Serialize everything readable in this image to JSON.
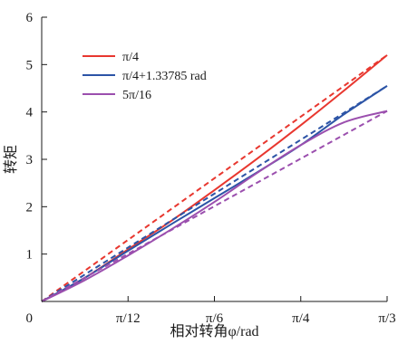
{
  "chart_data": {
    "type": "line",
    "title": "",
    "xlabel": "相对转角φ/rad",
    "ylabel": "转矩",
    "xlim": [
      0,
      1.0472
    ],
    "ylim": [
      0,
      6
    ],
    "grid": false,
    "legend_position": "top-left",
    "x_ticks": [
      {
        "value": 0,
        "label": "0"
      },
      {
        "value": 0.2618,
        "label": "π/12"
      },
      {
        "value": 0.5236,
        "label": "π/6"
      },
      {
        "value": 0.7854,
        "label": "π/4"
      },
      {
        "value": 1.0472,
        "label": "π/3"
      }
    ],
    "y_ticks": [
      {
        "value": 0,
        "label": ""
      },
      {
        "value": 1,
        "label": "1"
      },
      {
        "value": 2,
        "label": "2"
      },
      {
        "value": 3,
        "label": "3"
      },
      {
        "value": 4,
        "label": "4"
      },
      {
        "value": 5,
        "label": "5"
      },
      {
        "value": 6,
        "label": "6"
      }
    ],
    "series": [
      {
        "name": "π/4",
        "color": "#e8372f",
        "style": "solid",
        "x": [
          0,
          0.1309,
          0.2618,
          0.3927,
          0.5236,
          0.6545,
          0.7854,
          0.9163,
          1.0472
        ],
        "y": [
          0,
          0.5,
          1.1,
          1.7,
          2.35,
          3.02,
          3.72,
          4.45,
          5.2
        ]
      },
      {
        "name": "π/4",
        "color": "#e8372f",
        "style": "dashed",
        "x": [
          0,
          1.0472
        ],
        "y": [
          0,
          5.2
        ]
      },
      {
        "name": "π/4+1.33785 rad",
        "color": "#2c54a6",
        "style": "solid",
        "x": [
          0,
          0.1309,
          0.2618,
          0.3927,
          0.5236,
          0.6545,
          0.7854,
          0.9163,
          1.0472
        ],
        "y": [
          0,
          0.5,
          1.07,
          1.63,
          2.18,
          2.73,
          3.3,
          3.95,
          4.55
        ]
      },
      {
        "name": "π/4+1.33785 rad",
        "color": "#2c54a6",
        "style": "dashed",
        "x": [
          0,
          1.0472
        ],
        "y": [
          0,
          4.55
        ]
      },
      {
        "name": "5π/16",
        "color": "#9b4fae",
        "style": "solid",
        "x": [
          0,
          0.1309,
          0.2618,
          0.3927,
          0.5236,
          0.6545,
          0.7854,
          0.9163,
          1.0472
        ],
        "y": [
          0,
          0.45,
          0.97,
          1.52,
          2.1,
          2.72,
          3.3,
          3.78,
          4.02
        ]
      },
      {
        "name": "5π/16",
        "color": "#9b4fae",
        "style": "dashed",
        "x": [
          0,
          1.0472
        ],
        "y": [
          0,
          4.02
        ]
      }
    ],
    "legend": [
      {
        "label": "π/4",
        "color": "#e8372f"
      },
      {
        "label": "π/4+1.33785 rad",
        "color": "#2c54a6"
      },
      {
        "label": "5π/16",
        "color": "#9b4fae"
      }
    ],
    "origin_label": "0"
  }
}
